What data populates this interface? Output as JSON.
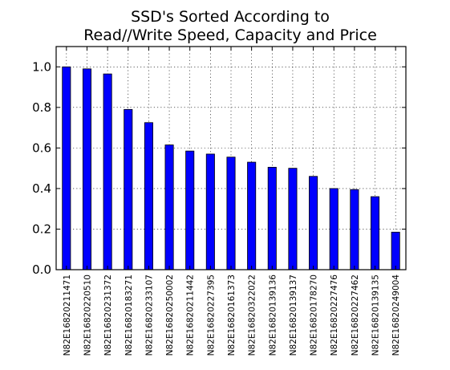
{
  "chart_data": {
    "type": "bar",
    "title": [
      "SSD's Sorted According to",
      "Read//Write Speed, Capacity and Price"
    ],
    "xlabel": "",
    "ylabel": "",
    "categories": [
      "N82E16820211471",
      "N82E16820220510",
      "N82E16820231372",
      "N82E16820183271",
      "N82E16820233107",
      "N82E16820250002",
      "N82E16820211442",
      "N82E16820227395",
      "N82E16820161373",
      "N82E16820322022",
      "N82E16820139136",
      "N82E16820139137",
      "N82E16820178270",
      "N82E16820227476",
      "N82E16820227462",
      "N82E16820139135",
      "N82E16820249004"
    ],
    "values": [
      1.0,
      0.99,
      0.965,
      0.79,
      0.725,
      0.615,
      0.585,
      0.57,
      0.555,
      0.53,
      0.505,
      0.5,
      0.46,
      0.4,
      0.395,
      0.36,
      0.185
    ],
    "ylim": [
      0,
      1.1
    ],
    "yticks": [
      "0.0",
      "0.2",
      "0.4",
      "0.6",
      "0.8",
      "1.0"
    ],
    "grid": true,
    "legend": "none",
    "colors": {
      "bar": "#0000ff",
      "grid": "#000000",
      "axes": "#000000"
    }
  }
}
